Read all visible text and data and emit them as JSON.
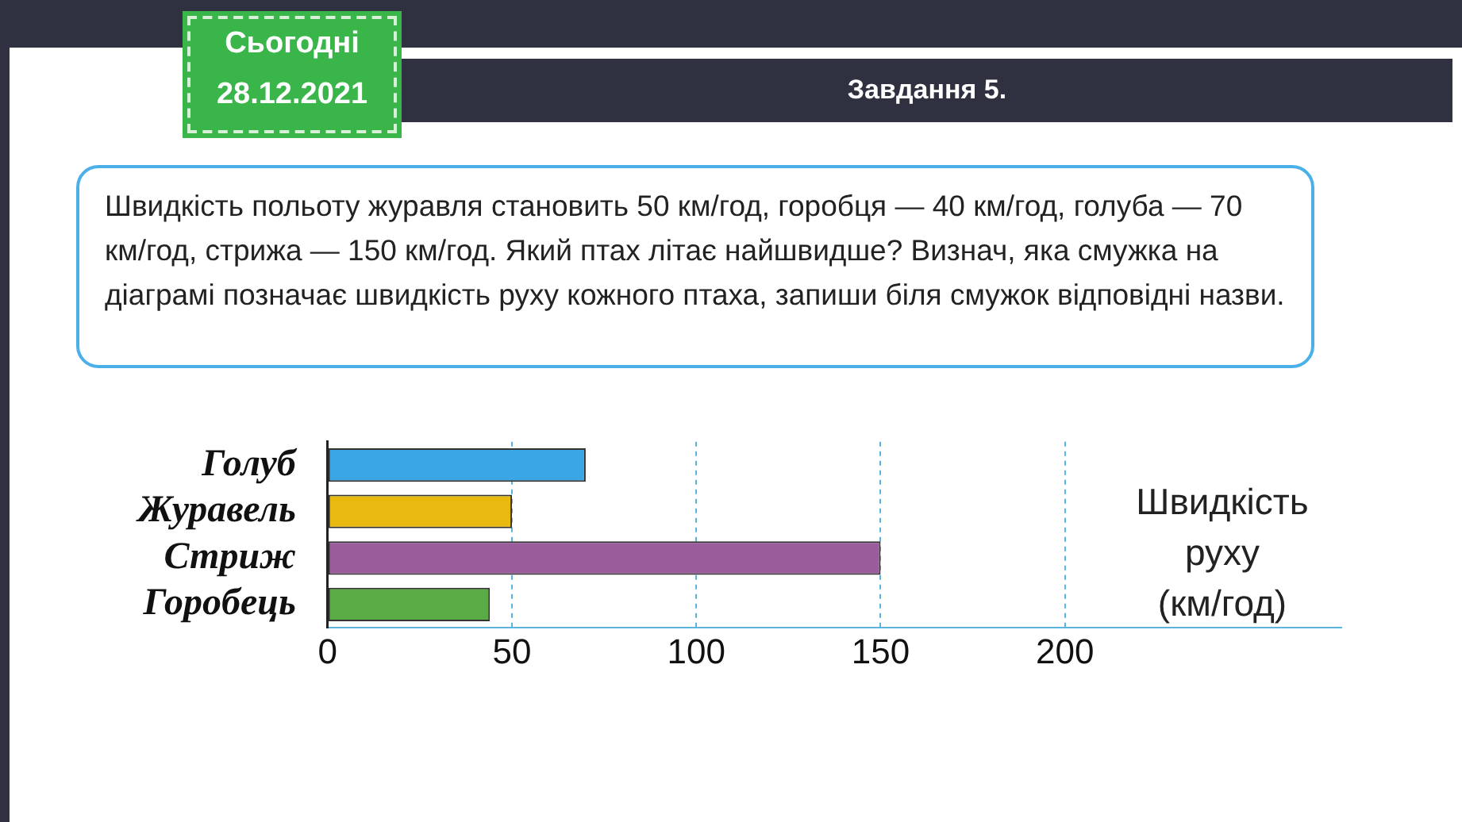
{
  "chart_data": {
    "type": "bar",
    "orientation": "horizontal",
    "title": "Завдання 5.",
    "subtitle": "Швидкість польоту журавля становить 50 км/год, горобця — 40 км/год, голуба — 70 км/год, стрижа — 150 км/год. Який птах літає найшвидше? Визнач, яка смужка на діаграмі позначає швидкість руху кожного птаха, запиши біля смужок відповідні назви.",
    "annotations": [
      "Сьогодні",
      "28.12.2021"
    ],
    "categories": [
      "Голуб",
      "Журавель",
      "Стриж",
      "Горобець"
    ],
    "values": [
      70,
      50,
      150,
      44
    ],
    "colors": [
      "#3aa6e6",
      "#e8b90e",
      "#9b5c9b",
      "#5aaa46"
    ],
    "xlabel": "Швидкість руху (км/год)",
    "xlim": [
      0,
      275
    ],
    "xticks": [
      0,
      50,
      100,
      150,
      200
    ],
    "grid": "x",
    "legend": false
  }
}
